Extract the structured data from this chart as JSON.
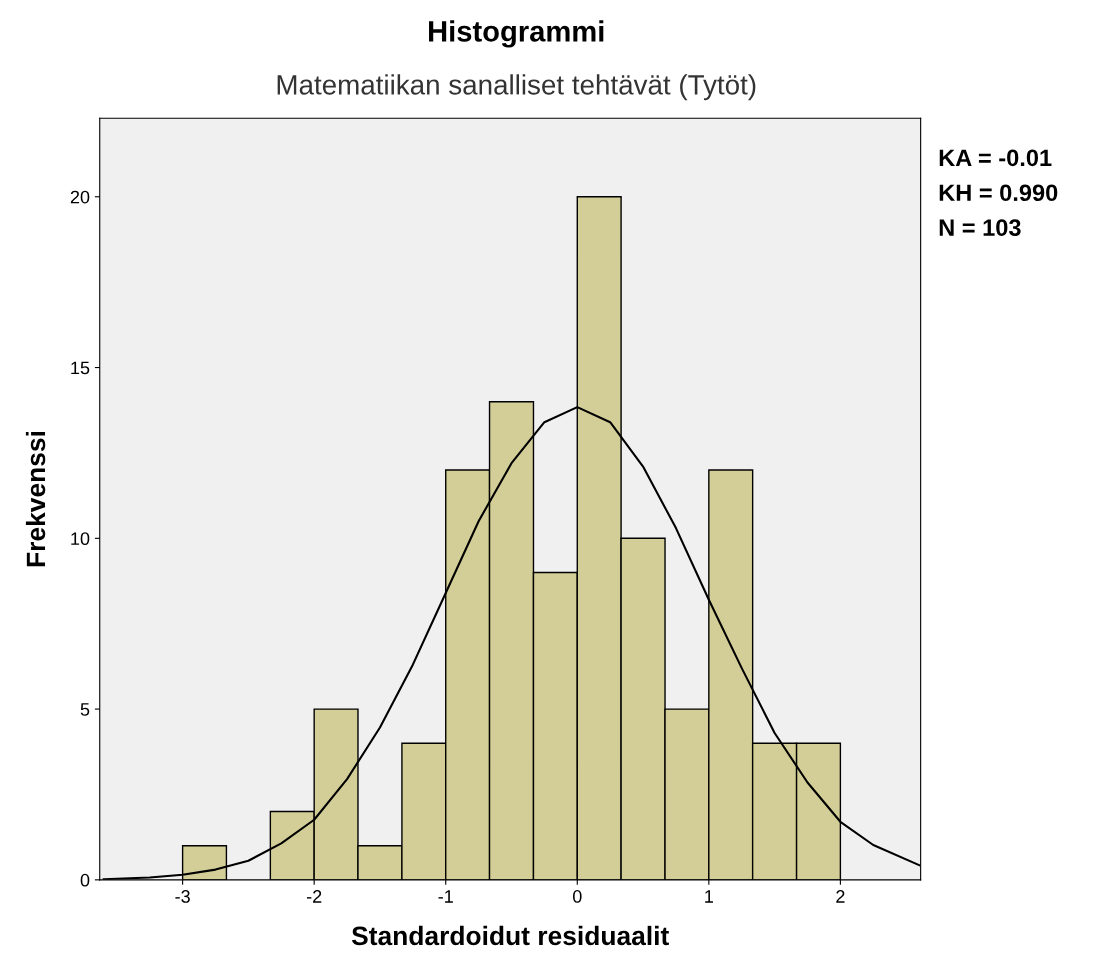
{
  "chart_data": {
    "type": "histogram",
    "title": "Histogrammi",
    "subtitle": "Matematiikan sanalliset tehtävät (Tytöt)",
    "xlabel": "Standardoidut residuaalit",
    "ylabel": "Frekvenssi",
    "bins": [
      -3,
      -2.667,
      -2.333,
      -2,
      -1.667,
      -1.333,
      -1,
      -0.667,
      -0.333,
      0,
      0.333,
      0.667,
      1,
      1.333,
      1.667,
      2
    ],
    "values": [
      1,
      0,
      2,
      5,
      1,
      4,
      12,
      14,
      9,
      20,
      10,
      5,
      12,
      4,
      4
    ],
    "color": "#d3ce97",
    "series": [
      {
        "type": "line",
        "color": "#000000",
        "x": [
          -3.6,
          -3.25,
          -3,
          -2.75,
          -2.5,
          -2.25,
          -2,
          -1.75,
          -1.5,
          -1.25,
          -1,
          -0.75,
          -0.5,
          -0.25,
          0,
          0.25,
          0.5,
          0.75,
          1,
          1.25,
          1.5,
          1.75,
          2,
          2.25,
          2.6
        ],
        "values": [
          0.02,
          0.07,
          0.15,
          0.3,
          0.56,
          1.07,
          1.76,
          2.95,
          4.46,
          6.3,
          8.4,
          10.5,
          12.2,
          13.4,
          13.84,
          13.4,
          12.1,
          10.3,
          8.2,
          6.2,
          4.3,
          2.85,
          1.7,
          1.02,
          0.43
        ]
      }
    ],
    "xlim": [
      -3.63,
      2.61
    ],
    "xticks": [
      -3,
      -2,
      -1,
      0,
      1,
      2
    ],
    "ylim": [
      0,
      22.3
    ],
    "yticks": [
      0,
      5,
      10,
      15,
      20
    ],
    "grid": false,
    "legend": false,
    "annotations": [
      "KA = -0.01",
      "KH = 0.990",
      "N = 103"
    ]
  }
}
